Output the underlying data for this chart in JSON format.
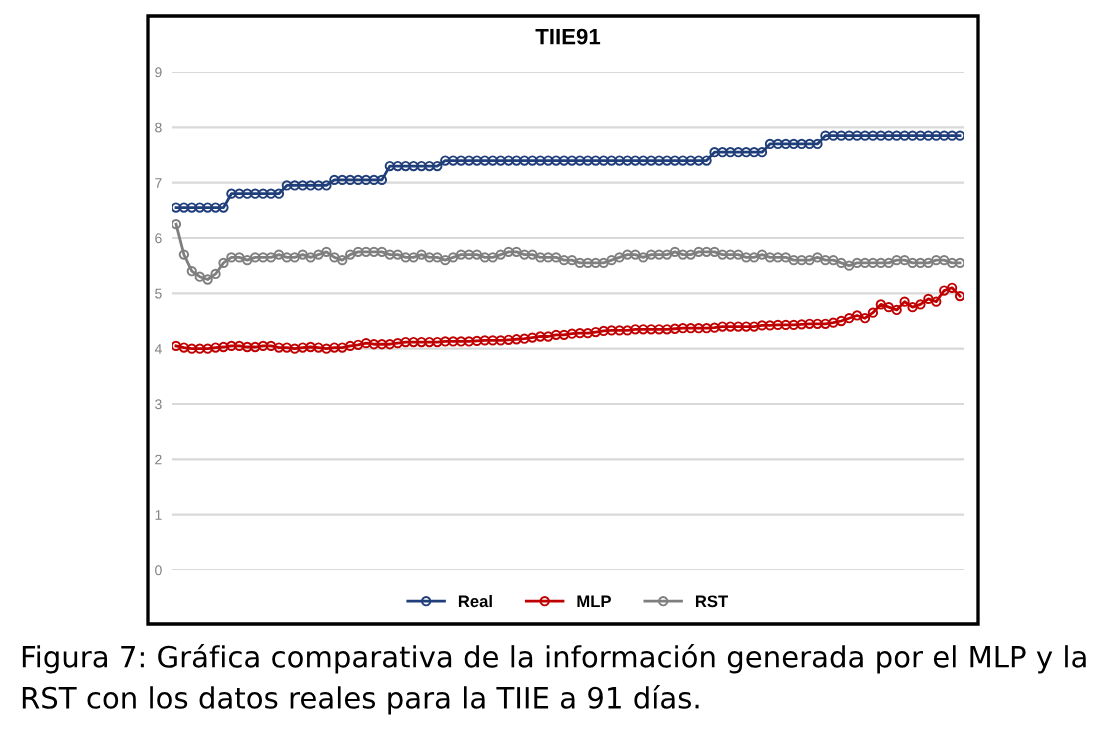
{
  "chart_data": {
    "type": "line",
    "title": "TIIE91",
    "categories": [
      null,
      null,
      null,
      null,
      null,
      null,
      null,
      null,
      null,
      null,
      null,
      null,
      null,
      null,
      null,
      null,
      null,
      null,
      null,
      null,
      null,
      null,
      null,
      null,
      null,
      null,
      null,
      null,
      null,
      null,
      null,
      null,
      null,
      null,
      null,
      null,
      null,
      null,
      null,
      null,
      null,
      null,
      null,
      null,
      null,
      null,
      null,
      null,
      null,
      null,
      null,
      null,
      null,
      null,
      null,
      null,
      null,
      null,
      null,
      null,
      null,
      null,
      null,
      null,
      null,
      null,
      null,
      null,
      null,
      null,
      null,
      null,
      null,
      null,
      null,
      null,
      null,
      null,
      null,
      null,
      null,
      null,
      null,
      null,
      null,
      null,
      null,
      null,
      null,
      null,
      null,
      null,
      null,
      null,
      null,
      null,
      null,
      null,
      null,
      null
    ],
    "series": [
      {
        "name": "Real",
        "color": "#1f3e7a",
        "values": [
          6.55,
          6.55,
          6.55,
          6.55,
          6.55,
          6.55,
          6.55,
          6.8,
          6.8,
          6.8,
          6.8,
          6.8,
          6.8,
          6.8,
          6.95,
          6.95,
          6.95,
          6.95,
          6.95,
          6.95,
          7.05,
          7.05,
          7.05,
          7.05,
          7.05,
          7.05,
          7.05,
          7.3,
          7.3,
          7.3,
          7.3,
          7.3,
          7.3,
          7.3,
          7.4,
          7.4,
          7.4,
          7.4,
          7.4,
          7.4,
          7.4,
          7.4,
          7.4,
          7.4,
          7.4,
          7.4,
          7.4,
          7.4,
          7.4,
          7.4,
          7.4,
          7.4,
          7.4,
          7.4,
          7.4,
          7.4,
          7.4,
          7.4,
          7.4,
          7.4,
          7.4,
          7.4,
          7.4,
          7.4,
          7.4,
          7.4,
          7.4,
          7.4,
          7.55,
          7.55,
          7.55,
          7.55,
          7.55,
          7.55,
          7.55,
          7.7,
          7.7,
          7.7,
          7.7,
          7.7,
          7.7,
          7.7,
          7.85,
          7.85,
          7.85,
          7.85,
          7.85,
          7.85,
          7.85,
          7.85,
          7.85,
          7.85,
          7.85,
          7.85,
          7.85,
          7.85,
          7.85,
          7.85,
          7.85,
          7.85
        ]
      },
      {
        "name": "MLP",
        "color": "#c00000",
        "values": [
          4.05,
          4.02,
          4.0,
          4.0,
          4.0,
          4.02,
          4.03,
          4.05,
          4.05,
          4.03,
          4.03,
          4.05,
          4.05,
          4.02,
          4.02,
          4.0,
          4.02,
          4.03,
          4.02,
          4.0,
          4.02,
          4.02,
          4.05,
          4.07,
          4.1,
          4.08,
          4.08,
          4.08,
          4.1,
          4.12,
          4.12,
          4.12,
          4.12,
          4.12,
          4.13,
          4.13,
          4.13,
          4.13,
          4.14,
          4.15,
          4.15,
          4.15,
          4.16,
          4.17,
          4.18,
          4.2,
          4.22,
          4.22,
          4.25,
          4.25,
          4.27,
          4.28,
          4.28,
          4.3,
          4.32,
          4.33,
          4.33,
          4.33,
          4.35,
          4.35,
          4.35,
          4.35,
          4.35,
          4.36,
          4.37,
          4.37,
          4.37,
          4.37,
          4.38,
          4.4,
          4.4,
          4.4,
          4.4,
          4.4,
          4.42,
          4.42,
          4.43,
          4.43,
          4.43,
          4.44,
          4.45,
          4.45,
          4.45,
          4.47,
          4.5,
          4.55,
          4.6,
          4.55,
          4.65,
          4.8,
          4.75,
          4.7,
          4.85,
          4.75,
          4.8,
          4.9,
          4.85,
          5.05,
          5.1,
          4.95
        ]
      },
      {
        "name": "RST",
        "color": "#7f7f7f",
        "values": [
          6.25,
          5.7,
          5.4,
          5.3,
          5.25,
          5.35,
          5.55,
          5.65,
          5.65,
          5.6,
          5.65,
          5.65,
          5.65,
          5.7,
          5.65,
          5.65,
          5.7,
          5.65,
          5.7,
          5.75,
          5.65,
          5.6,
          5.7,
          5.75,
          5.75,
          5.75,
          5.75,
          5.7,
          5.7,
          5.65,
          5.65,
          5.7,
          5.65,
          5.65,
          5.6,
          5.65,
          5.7,
          5.7,
          5.7,
          5.65,
          5.65,
          5.7,
          5.75,
          5.75,
          5.7,
          5.7,
          5.65,
          5.65,
          5.65,
          5.6,
          5.6,
          5.55,
          5.55,
          5.55,
          5.55,
          5.6,
          5.65,
          5.7,
          5.7,
          5.65,
          5.7,
          5.7,
          5.7,
          5.75,
          5.7,
          5.7,
          5.75,
          5.75,
          5.75,
          5.7,
          5.7,
          5.7,
          5.65,
          5.65,
          5.7,
          5.65,
          5.65,
          5.65,
          5.6,
          5.6,
          5.6,
          5.65,
          5.6,
          5.6,
          5.55,
          5.5,
          5.55,
          5.55,
          5.55,
          5.55,
          5.55,
          5.6,
          5.6,
          5.55,
          5.55,
          5.55,
          5.6,
          5.6,
          5.55,
          5.55
        ]
      }
    ],
    "ylim": [
      0,
      9
    ],
    "yticks": [
      0,
      1,
      2,
      3,
      4,
      5,
      6,
      7,
      8,
      9
    ],
    "tick_labels": "y",
    "grid": "y",
    "legend": "bottom",
    "marker": "circle",
    "line_style": "solid",
    "annotations": [
      "Figura 7: Gráfica comparativa de la información generada por el MLP y la RST con los datos reales para la TIIE a 91 días."
    ]
  }
}
